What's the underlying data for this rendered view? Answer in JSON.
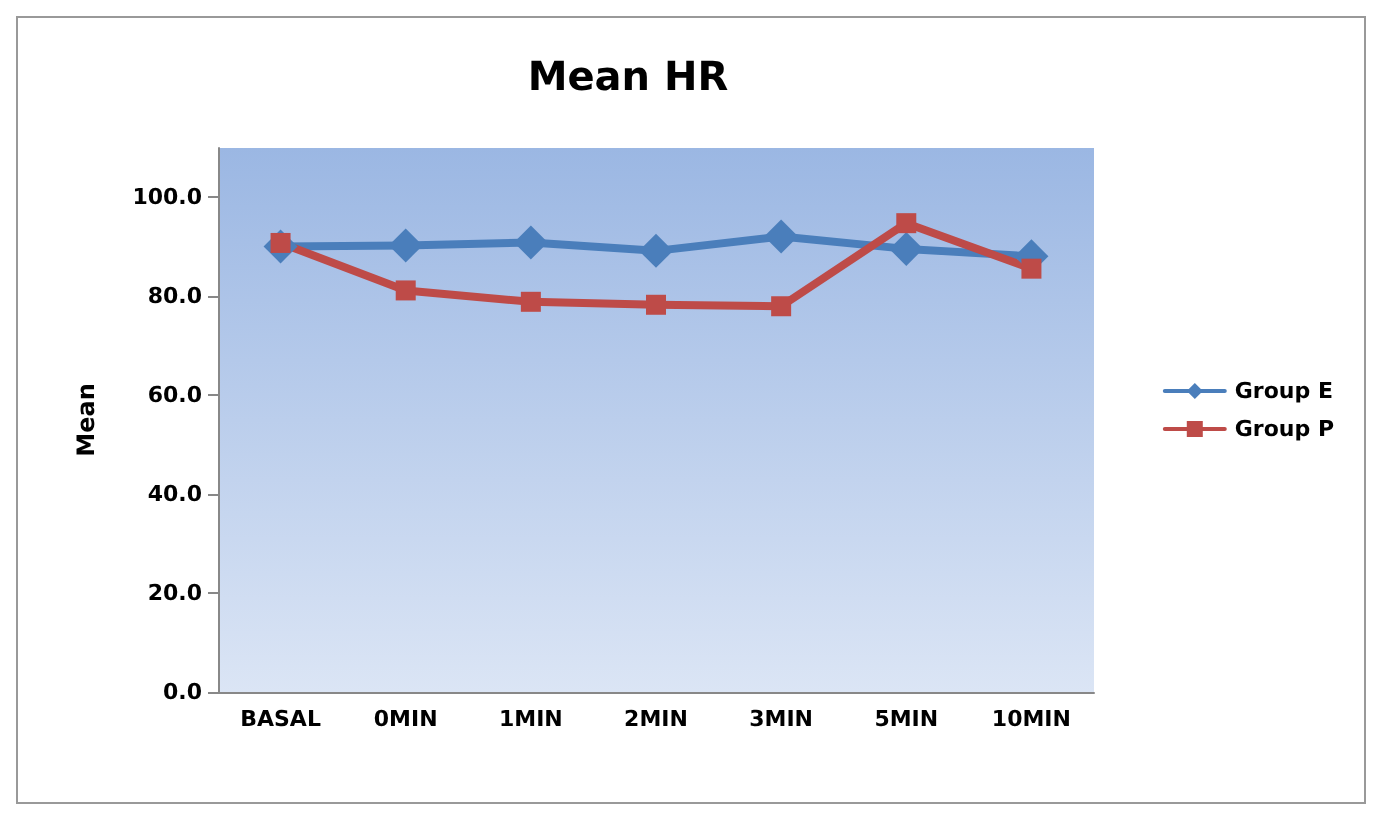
{
  "chart_data": {
    "type": "line",
    "title": "Mean HR",
    "ylabel": "Mean",
    "categories": [
      "BASAL",
      "0MIN",
      "1MIN",
      "2MIN",
      "3MIN",
      "5MIN",
      "10MIN"
    ],
    "series": [
      {
        "name": "Group E",
        "color": "#4a7ebb",
        "marker": "diamond",
        "values": [
          90.1,
          90.3,
          90.9,
          89.2,
          92.1,
          89.6,
          88.1
        ]
      },
      {
        "name": "Group P",
        "color": "#be4b48",
        "marker": "square",
        "values": [
          90.8,
          81.2,
          78.9,
          78.3,
          78.0,
          94.8,
          85.6
        ]
      }
    ],
    "ylim": [
      0,
      110
    ],
    "yticks": [
      {
        "value": 0,
        "label": "0.0"
      },
      {
        "value": 20,
        "label": "20.0"
      },
      {
        "value": 40,
        "label": "40.0"
      },
      {
        "value": 60,
        "label": "60.0"
      },
      {
        "value": 80,
        "label": "80.0"
      },
      {
        "value": 100,
        "label": "100.0"
      }
    ],
    "grid": false,
    "legend": "right"
  }
}
